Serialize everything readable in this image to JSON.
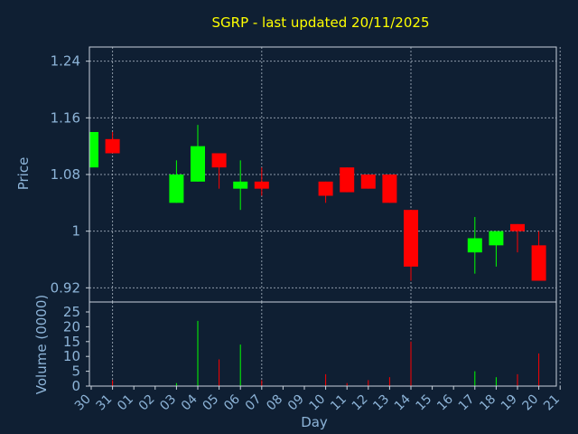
{
  "chart_data": {
    "type": "candlestick",
    "title": "SGRP - last updated 20/11/2025",
    "xlabel": "Day",
    "ylabel_price": "Price",
    "ylabel_volume": "Volume (0000)",
    "price_ylim": [
      0.9,
      1.26
    ],
    "price_ticks": [
      {
        "value": 1.24,
        "label": "1.24"
      },
      {
        "value": 1.16,
        "label": "1.16"
      },
      {
        "value": 1.08,
        "label": "1.08"
      },
      {
        "value": 1.0,
        "label": "1"
      },
      {
        "value": 0.92,
        "label": "0.92"
      }
    ],
    "volume_ylim": [
      0,
      25
    ],
    "volume_ticks": [
      0,
      5,
      10,
      15,
      20,
      25
    ],
    "x_labels": [
      "30",
      "31",
      "01",
      "02",
      "03",
      "04",
      "05",
      "06",
      "07",
      "08",
      "09",
      "10",
      "11",
      "12",
      "13",
      "14",
      "15",
      "16",
      "17",
      "18",
      "19",
      "20",
      "21"
    ],
    "grid": true,
    "colors": {
      "up": "#00ff00",
      "down": "#ff0000",
      "background": "#0f1f33",
      "title": "#ffff00",
      "text": "#8db4d8"
    },
    "candles": [
      {
        "day": "30",
        "open": 1.09,
        "close": 1.14,
        "high": 1.14,
        "low": 1.09,
        "volume": 0
      },
      {
        "day": "31",
        "open": 1.13,
        "close": 1.11,
        "high": 1.14,
        "low": 1.11,
        "volume": 2
      },
      {
        "day": "03",
        "open": 1.04,
        "close": 1.08,
        "high": 1.1,
        "low": 1.04,
        "volume": 1
      },
      {
        "day": "04",
        "open": 1.07,
        "close": 1.12,
        "high": 1.15,
        "low": 1.07,
        "volume": 22
      },
      {
        "day": "05",
        "open": 1.11,
        "close": 1.09,
        "high": 1.11,
        "low": 1.06,
        "volume": 9
      },
      {
        "day": "06",
        "open": 1.06,
        "close": 1.07,
        "high": 1.1,
        "low": 1.03,
        "volume": 14
      },
      {
        "day": "07",
        "open": 1.07,
        "close": 1.06,
        "high": 1.09,
        "low": 1.05,
        "volume": 2
      },
      {
        "day": "10",
        "open": 1.07,
        "close": 1.05,
        "high": 1.07,
        "low": 1.04,
        "volume": 4
      },
      {
        "day": "11",
        "open": 1.09,
        "close": 1.055,
        "high": 1.09,
        "low": 1.055,
        "volume": 1
      },
      {
        "day": "12",
        "open": 1.08,
        "close": 1.06,
        "high": 1.08,
        "low": 1.06,
        "volume": 2
      },
      {
        "day": "13",
        "open": 1.08,
        "close": 1.04,
        "high": 1.08,
        "low": 1.04,
        "volume": 3
      },
      {
        "day": "14",
        "open": 1.03,
        "close": 0.95,
        "high": 1.03,
        "low": 0.93,
        "volume": 15
      },
      {
        "day": "17",
        "open": 0.97,
        "close": 0.99,
        "high": 1.02,
        "low": 0.94,
        "volume": 5
      },
      {
        "day": "18",
        "open": 0.98,
        "close": 1.0,
        "high": 1.0,
        "low": 0.95,
        "volume": 3
      },
      {
        "day": "19",
        "open": 1.01,
        "close": 1.0,
        "high": 1.01,
        "low": 0.97,
        "volume": 4
      },
      {
        "day": "20",
        "open": 0.98,
        "close": 0.93,
        "high": 1.0,
        "low": 0.93,
        "volume": 11
      }
    ]
  }
}
